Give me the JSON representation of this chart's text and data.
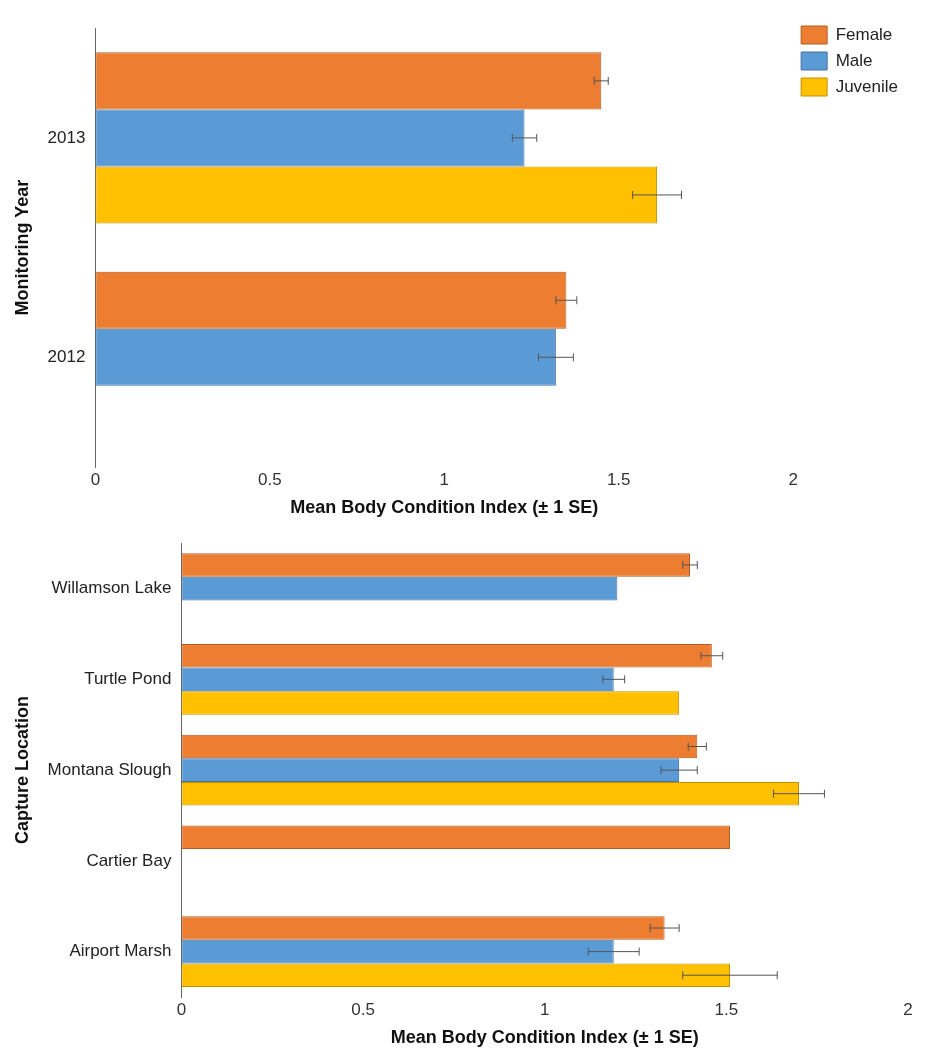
{
  "chart_data": [
    {
      "type": "bar",
      "orientation": "horizontal",
      "categories": [
        "2013",
        "2012"
      ],
      "xlabel": "Mean Body Condition Index (± 1 SE)",
      "ylabel": "Monitoring Year",
      "xlim": [
        0,
        2
      ],
      "xticks": [
        0,
        0.5,
        1,
        1.5,
        2
      ],
      "legend": "top right",
      "grid": false,
      "series": [
        {
          "name": "Female",
          "color": "#ed7d31",
          "values": [
            1.45,
            1.35
          ],
          "errors": [
            0.02,
            0.03
          ]
        },
        {
          "name": "Male",
          "color": "#5b9bd5",
          "values": [
            1.23,
            1.32
          ],
          "errors": [
            0.035,
            0.05
          ]
        },
        {
          "name": "Juvenile",
          "color": "#ffc000",
          "values": [
            1.61,
            null
          ],
          "errors": [
            0.07,
            null
          ]
        }
      ]
    },
    {
      "type": "bar",
      "orientation": "horizontal",
      "categories": [
        "Willamson Lake",
        "Turtle Pond",
        "Montana Slough",
        "Cartier Bay",
        "Airport Marsh"
      ],
      "xlabel": "Mean Body Condition Index (± 1 SE)",
      "ylabel": "Capture Location",
      "xlim": [
        0,
        2
      ],
      "xticks": [
        0,
        0.5,
        1,
        1.5,
        2
      ],
      "grid": false,
      "series": [
        {
          "color": "#ed7d31",
          "values": [
            1.4,
            1.46,
            1.42,
            1.51,
            1.33
          ],
          "errors": [
            0.02,
            0.03,
            0.025,
            null,
            0.04
          ]
        },
        {
          "color": "#5b9bd5",
          "values": [
            1.2,
            1.19,
            1.37,
            null,
            1.19
          ],
          "errors": [
            null,
            0.03,
            0.05,
            null,
            0.07
          ]
        },
        {
          "color": "#ffc000",
          "values": [
            null,
            1.37,
            1.7,
            null,
            1.51
          ],
          "errors": [
            null,
            null,
            0.07,
            null,
            0.13
          ]
        }
      ]
    }
  ]
}
